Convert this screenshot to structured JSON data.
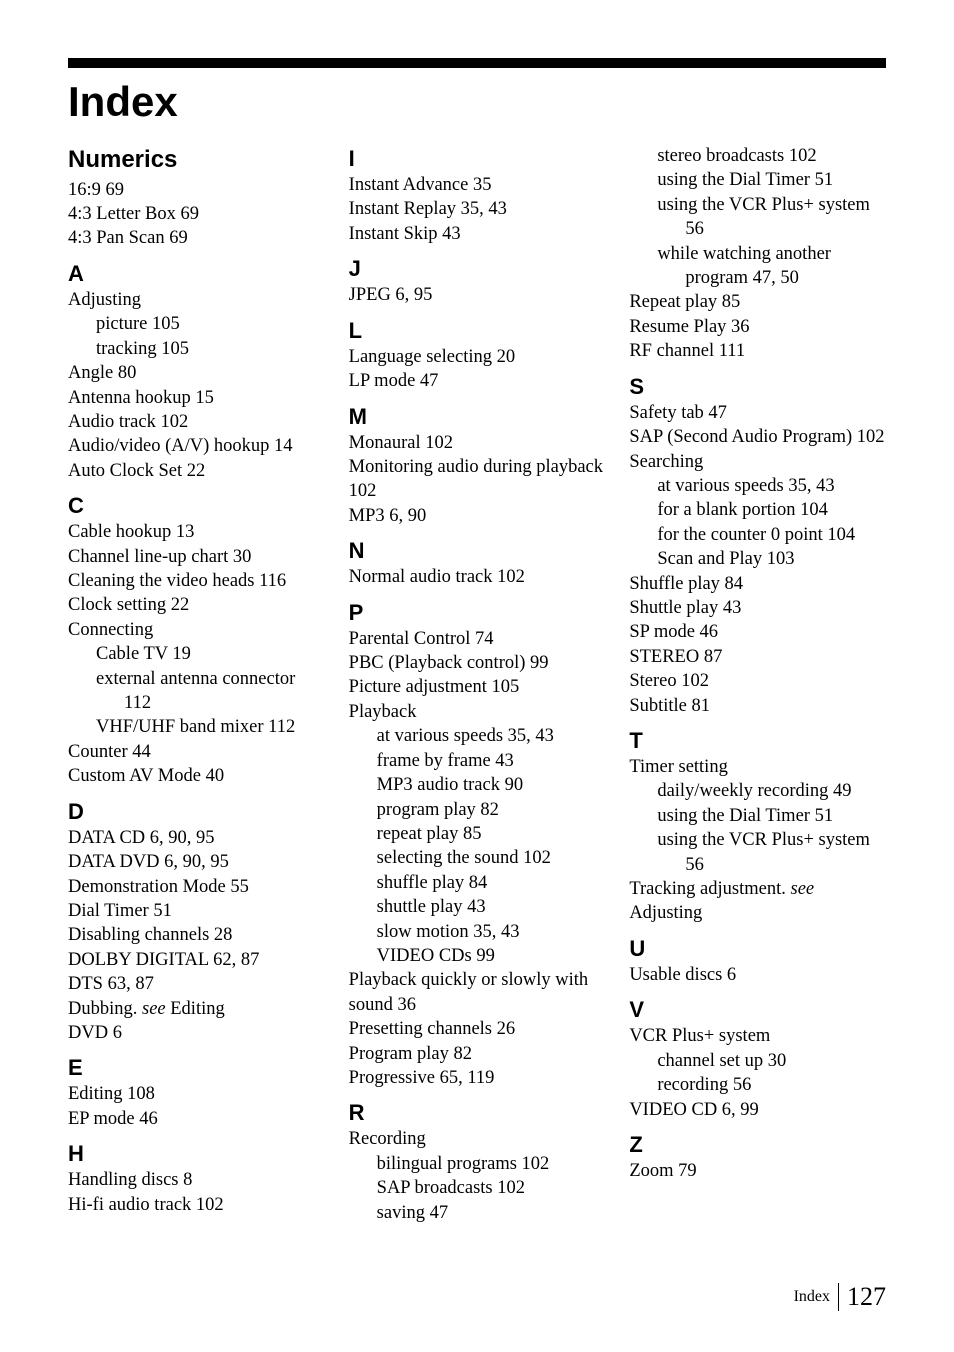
{
  "title": "Index",
  "footer": {
    "label": "Index",
    "page": "127"
  },
  "sections": {
    "numerics_h": "Numerics",
    "n1": "16:9 69",
    "n2": "4:3 Letter Box 69",
    "n3": "4:3 Pan Scan 69",
    "A": "A",
    "a1": "Adjusting",
    "a1s1": "picture 105",
    "a1s2": "tracking 105",
    "a2": "Angle 80",
    "a3": "Antenna hookup 15",
    "a4": "Audio track 102",
    "a5": "Audio/video (A/V) hookup 14",
    "a6": "Auto Clock Set 22",
    "C": "C",
    "c1": "Cable hookup 13",
    "c2": "Channel line-up chart 30",
    "c3": "Cleaning the video heads 116",
    "c4": "Clock setting 22",
    "c5": "Connecting",
    "c5s1": "Cable TV 19",
    "c5s2": "external antenna connector 112",
    "c5s3": "VHF/UHF band mixer 112",
    "c6": "Counter 44",
    "c7": "Custom AV Mode 40",
    "D": "D",
    "d1": "DATA CD 6, 90, 95",
    "d2": "DATA DVD 6, 90, 95",
    "d3": "Demonstration Mode 55",
    "d4": "Dial Timer 51",
    "d5": "Disabling channels 28",
    "d6": "DOLBY DIGITAL 62, 87",
    "d7": "DTS 63, 87",
    "d8a": "Dubbing. ",
    "d8b": "see",
    "d8c": " Editing",
    "d9": "DVD 6",
    "E": "E",
    "e1": "Editing 108",
    "e2": "EP mode 46",
    "H": "H",
    "h1": "Handling discs 8",
    "h2": "Hi-fi audio track 102",
    "I": "I",
    "i1": "Instant Advance 35",
    "i2": "Instant Replay 35, 43",
    "i3": "Instant Skip 43",
    "J": "J",
    "j1": "JPEG 6, 95",
    "L": "L",
    "l1": "Language selecting 20",
    "l2": "LP mode 47",
    "M": "M",
    "m1": "Monaural 102",
    "m2": "Monitoring audio during playback 102",
    "m3": "MP3 6, 90",
    "N": "N",
    "nn1": "Normal audio track 102",
    "P": "P",
    "p1": "Parental Control 74",
    "p2": "PBC (Playback control) 99",
    "p3": "Picture adjustment 105",
    "p4": "Playback",
    "p4s1": "at various speeds 35, 43",
    "p4s2": "frame by frame 43",
    "p4s3": "MP3 audio track 90",
    "p4s4": "program play 82",
    "p4s5": "repeat play 85",
    "p4s6": "selecting the sound 102",
    "p4s7": "shuffle play 84",
    "p4s8": "shuttle play 43",
    "p4s9": "slow motion 35, 43",
    "p4s10": "VIDEO CDs 99",
    "p5": "Playback quickly or slowly with sound 36",
    "p6": "Presetting channels 26",
    "p7": "Program play 82",
    "p8": "Progressive 65, 119",
    "R": "R",
    "r1": "Recording",
    "r1s1": "bilingual programs 102",
    "r1s2": "SAP broadcasts 102",
    "r1s3": "saving 47",
    "r1s4": "stereo broadcasts 102",
    "r1s5": "using the Dial Timer 51",
    "r1s6": "using the VCR Plus+ system 56",
    "r1s7": "while watching another program 47, 50",
    "r2": "Repeat play 85",
    "r3": "Resume Play 36",
    "r4": "RF channel 111",
    "S": "S",
    "s1": "Safety tab 47",
    "s2": "SAP (Second Audio Program) 102",
    "s3": "Searching",
    "s3s1": "at various speeds 35, 43",
    "s3s2": "for a blank portion 104",
    "s3s3": "for the counter 0 point 104",
    "s3s4": "Scan and Play 103",
    "s4": "Shuffle play 84",
    "s5": "Shuttle play 43",
    "s6": "SP mode 46",
    "s7": "STEREO 87",
    "s8": "Stereo 102",
    "s9": "Subtitle 81",
    "T": "T",
    "t1": "Timer setting",
    "t1s1": "daily/weekly recording 49",
    "t1s2": "using the Dial Timer 51",
    "t1s3": "using the VCR Plus+ system 56",
    "t2a": "Tracking adjustment. ",
    "t2b": "see",
    "t2c": " Adjusting",
    "U": "U",
    "u1": "Usable discs 6",
    "V": "V",
    "v1": "VCR Plus+ system",
    "v1s1": "channel set up 30",
    "v1s2": "recording 56",
    "v2": "VIDEO CD 6, 99",
    "Z": "Z",
    "z1": "Zoom 79"
  }
}
